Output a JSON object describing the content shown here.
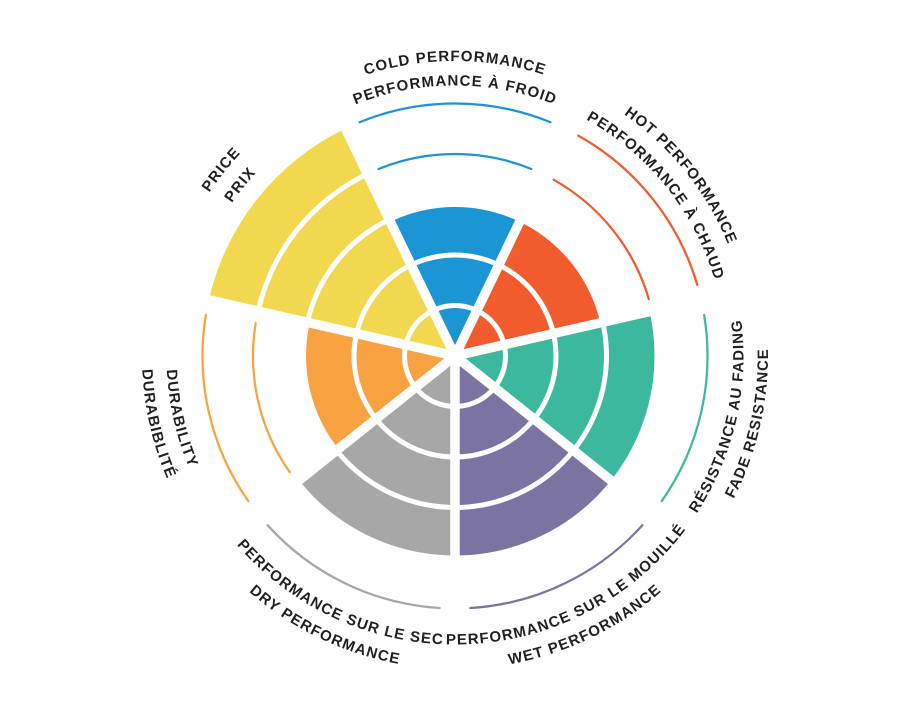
{
  "page": {
    "background": "#ffffff",
    "text_color": "#231f20"
  },
  "chart_data": {
    "type": "polar-sector-wheel",
    "description": "Bilingual tire performance rating wheel. Seven equal sectors are each filled from the centre outward to a rating level out of 5 concentric rings; unfilled ring levels are indicated by thin arcs drawn in the sector colour. Thin white rings and spokes divide levels and sectors.",
    "scale": {
      "min": 0,
      "max": 5
    },
    "grid": {
      "rings": 5,
      "ring_dividers": "white",
      "sector_dividers": "white"
    },
    "legend_position": "curved bilingual labels around the outside of the wheel",
    "segments": [
      {
        "id": "cold-performance",
        "label_en": "COLD PERFORMANCE",
        "label_fr": "PERFORMANCE À FROID",
        "outer_line": "en",
        "value": 3,
        "color": "#1b95d3"
      },
      {
        "id": "hot-performance",
        "label_en": "HOT PERFORMANCE",
        "label_fr": "PERFORMANCE À CHAUD",
        "outer_line": "en",
        "value": 3,
        "color": "#f15b2e"
      },
      {
        "id": "fade-resistance",
        "label_en": "FADE RESISTANCE",
        "label_fr": "RÉSISTANCE AU FADING",
        "outer_line": "en",
        "value": 4,
        "color": "#3cb89c"
      },
      {
        "id": "wet-performance",
        "label_en": "WET PERFORMANCE",
        "label_fr": "PERFORMANCE SUR LE MOUILLÉ",
        "outer_line": "en",
        "value": 4,
        "color": "#7b74a3"
      },
      {
        "id": "dry-performance",
        "label_en": "DRY PERFORMANCE",
        "label_fr": "PERFORMANCE SUR LE SEC",
        "outer_line": "en",
        "value": 4,
        "color": "#a7a7a7"
      },
      {
        "id": "durability",
        "label_en": "DURABILITY",
        "label_fr": "DURABIBLITÉ",
        "outer_line": "fr",
        "value": 3,
        "color": "#f9a242"
      },
      {
        "id": "price",
        "label_en": "PRICE",
        "label_fr": "PRIX",
        "outer_line": "en",
        "value": 5,
        "color": "#f2d84e"
      }
    ]
  }
}
